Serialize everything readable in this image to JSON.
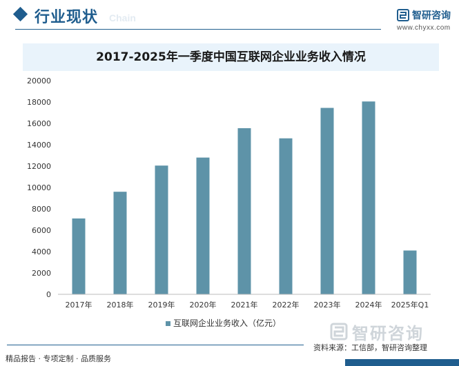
{
  "header": {
    "section_title": "行业现状",
    "section_subtitle": "Chain",
    "brand_name": "智研咨询",
    "brand_url": "www.chyxx.com"
  },
  "chart_data": {
    "type": "bar",
    "title": "2017-2025年一季度中国互联网企业业务收入情况",
    "categories": [
      "2017年",
      "2018年",
      "2019年",
      "2020年",
      "2021年",
      "2022年",
      "2023年",
      "2024年",
      "2025年Q1"
    ],
    "series": [
      {
        "name": "互联网企业业务收入（亿元）",
        "values": [
          7100,
          9600,
          12050,
          12800,
          15550,
          14600,
          17450,
          18050,
          4100
        ],
        "color": "#5e93a8"
      }
    ],
    "ylim": [
      0,
      20000
    ],
    "yticks": [
      0,
      2000,
      4000,
      6000,
      8000,
      10000,
      12000,
      14000,
      16000,
      18000,
      20000
    ],
    "grid": false,
    "legend_position": "bottom-center"
  },
  "footer": {
    "left_text": "精品报告 · 专项定制 · 品质服务",
    "source": "资料来源：工信部，智研咨询整理",
    "brand_name": "智研咨询"
  }
}
